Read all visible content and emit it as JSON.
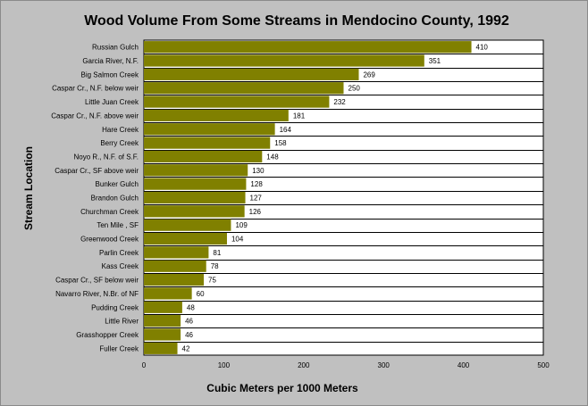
{
  "chart_data": {
    "type": "bar",
    "orientation": "horizontal",
    "title": "Wood Volume From Some Streams in Mendocino County, 1992",
    "xlabel": "Cubic Meters per 1000 Meters",
    "ylabel": "Stream Location",
    "xlim": [
      0,
      500
    ],
    "xticks": [
      0,
      100,
      200,
      300,
      400,
      500
    ],
    "grid": "horizontal",
    "legend": "none",
    "bar_color": "#808000",
    "categories": [
      "Russian Gulch",
      "Garcia River, N.F.",
      "Big Salmon Creek",
      "Caspar Cr., N.F. below weir",
      "Little Juan Creek",
      "Caspar Cr., N.F. above weir",
      "Hare Creek",
      "Berry Creek",
      "Noyo R., N.F. of  S.F.",
      "Caspar Cr., SF above weir",
      "Bunker Gulch",
      "Brandon Gulch",
      "Churchman Creek",
      "Ten Mile , SF",
      "Greenwood Creek",
      "Parlin Creek",
      "Kass Creek",
      "Caspar Cr., SF below weir",
      "Navarro River, N.Br. of NF",
      "Pudding Creek",
      "Little River",
      "Grasshopper Creek",
      "Fuller Creek"
    ],
    "values": [
      410,
      351,
      269,
      250,
      232,
      181,
      164,
      158,
      148,
      130,
      128,
      127,
      126,
      109,
      104,
      81,
      78,
      75,
      60,
      48,
      46,
      46,
      42
    ]
  }
}
